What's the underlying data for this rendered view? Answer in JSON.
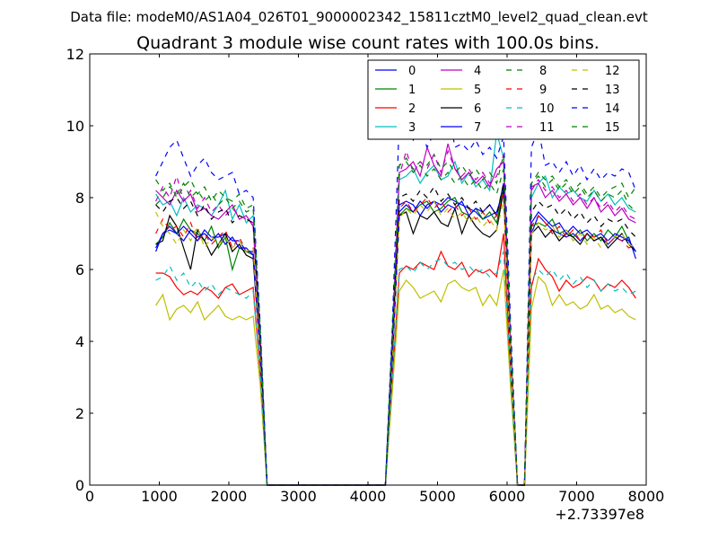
{
  "chart_data": {
    "type": "line",
    "suptitle": "Data file: modeM0/AS1A04_026T01_9000002342_15811cztM0_level2_quad_clean.evt",
    "title": "Quadrant 3 module wise count rates with 100.0s bins.",
    "xlabel": "",
    "ylabel": "",
    "x_offset_label": "+2.73397e8",
    "xlim": [
      0,
      8000
    ],
    "ylim": [
      0,
      12
    ],
    "xticks": [
      0,
      1000,
      2000,
      3000,
      4000,
      5000,
      6000,
      7000,
      8000
    ],
    "xtick_labels": [
      "0",
      "1000",
      "2000",
      "3000",
      "4000",
      "5000",
      "6000",
      "7000",
      "8000"
    ],
    "yticks": [
      0,
      2,
      4,
      6,
      8,
      10,
      12
    ],
    "ytick_labels": [
      "0",
      "2",
      "4",
      "6",
      "8",
      "10",
      "12"
    ],
    "legend_position": "top-right",
    "x": [
      950,
      1050,
      1150,
      1250,
      1350,
      1450,
      1550,
      1650,
      1750,
      1850,
      1950,
      2050,
      2150,
      2250,
      2350,
      2450,
      2550,
      2650,
      2750,
      2850,
      2950,
      3050,
      3150,
      3250,
      3350,
      3450,
      3550,
      3650,
      3750,
      3850,
      3950,
      4050,
      4150,
      4250,
      4350,
      4450,
      4550,
      4650,
      4750,
      4850,
      4950,
      5050,
      5150,
      5250,
      5350,
      5450,
      5550,
      5650,
      5750,
      5850,
      5950,
      6050,
      6150,
      6250,
      6350,
      6450,
      6550,
      6650,
      6750,
      6850,
      6950,
      7050,
      7150,
      7250,
      7350,
      7450,
      7550,
      7650,
      7750,
      7850
    ],
    "series": [
      {
        "name": "0",
        "color": "#0000ff",
        "dash": false,
        "values": [
          6.6,
          7.0,
          7.1,
          7.0,
          7.2,
          7.0,
          6.8,
          7.1,
          6.9,
          6.9,
          7.0,
          6.8,
          6.8,
          6.5,
          6.5,
          3.8,
          0,
          0,
          0,
          0,
          0,
          0,
          0,
          0,
          0,
          0,
          0,
          0,
          0,
          0,
          0,
          0,
          0,
          0,
          3.5,
          7.8,
          7.9,
          7.8,
          7.5,
          7.8,
          7.9,
          7.8,
          8.0,
          7.9,
          7.8,
          7.7,
          7.6,
          7.4,
          7.5,
          7.6,
          8.2,
          3.5,
          0,
          0,
          7.0,
          7.5,
          7.3,
          7.1,
          7.0,
          6.9,
          7.0,
          6.8,
          7.0,
          6.8,
          6.9,
          6.7,
          6.9,
          6.8,
          6.9,
          6.3
        ]
      },
      {
        "name": "1",
        "color": "#008000",
        "dash": false,
        "values": [
          6.7,
          6.9,
          7.3,
          7.0,
          7.4,
          7.1,
          7.0,
          6.8,
          7.2,
          6.6,
          6.9,
          6.0,
          6.6,
          6.5,
          6.4,
          3.7,
          0,
          0,
          0,
          0,
          0,
          0,
          0,
          0,
          0,
          0,
          0,
          0,
          0,
          0,
          0,
          0,
          0,
          0,
          3.6,
          7.5,
          7.7,
          7.6,
          7.8,
          7.9,
          7.6,
          7.7,
          7.9,
          8.0,
          7.6,
          7.5,
          7.7,
          7.4,
          7.6,
          7.3,
          8.3,
          3.6,
          0,
          0,
          7.2,
          7.3,
          7.2,
          7.4,
          7.0,
          7.1,
          6.9,
          7.1,
          6.8,
          7.0,
          6.8,
          7.1,
          6.9,
          7.2,
          6.8,
          6.5
        ]
      },
      {
        "name": "2",
        "color": "#ff0000",
        "dash": false,
        "values": [
          5.9,
          5.9,
          5.8,
          5.5,
          5.3,
          5.4,
          5.3,
          5.5,
          5.4,
          5.2,
          5.5,
          5.6,
          5.3,
          5.4,
          5.5,
          3.1,
          0,
          0,
          0,
          0,
          0,
          0,
          0,
          0,
          0,
          0,
          0,
          0,
          0,
          0,
          0,
          0,
          0,
          0,
          2.9,
          5.9,
          6.1,
          6.0,
          6.2,
          6.1,
          6.0,
          6.5,
          6.1,
          6.0,
          6.2,
          5.8,
          6.0,
          5.9,
          6.0,
          5.8,
          7.0,
          3.0,
          0,
          0,
          5.5,
          6.3,
          6.0,
          5.8,
          5.4,
          5.7,
          5.5,
          5.6,
          5.8,
          5.7,
          5.4,
          5.6,
          5.5,
          5.7,
          5.5,
          5.2
        ]
      },
      {
        "name": "3",
        "color": "#00bfbf",
        "dash": false,
        "values": [
          8.1,
          7.8,
          7.9,
          7.5,
          8.0,
          7.6,
          7.8,
          7.7,
          7.5,
          7.8,
          8.2,
          7.4,
          7.8,
          7.3,
          7.5,
          4.3,
          0,
          0,
          0,
          0,
          0,
          0,
          0,
          0,
          0,
          0,
          0,
          0,
          0,
          0,
          0,
          0,
          0,
          0,
          4.2,
          8.5,
          8.6,
          8.8,
          8.4,
          8.7,
          8.9,
          8.5,
          8.6,
          9.0,
          8.4,
          8.7,
          8.3,
          8.5,
          8.2,
          9.8,
          9.1,
          4.0,
          0,
          0,
          8.0,
          8.4,
          8.6,
          8.0,
          8.3,
          8.1,
          8.2,
          8.0,
          7.9,
          8.2,
          7.9,
          8.1,
          7.8,
          8.0,
          7.7,
          7.6
        ]
      },
      {
        "name": "4",
        "color": "#bf00bf",
        "dash": false,
        "values": [
          8.2,
          8.0,
          7.8,
          8.2,
          7.9,
          8.1,
          7.6,
          7.7,
          7.5,
          7.4,
          7.6,
          7.8,
          7.4,
          7.5,
          7.2,
          4.1,
          0,
          0,
          0,
          0,
          0,
          0,
          0,
          0,
          0,
          0,
          0,
          0,
          0,
          0,
          0,
          0,
          0,
          0,
          4.0,
          8.7,
          8.8,
          9.0,
          8.6,
          9.4,
          8.9,
          8.6,
          9.5,
          8.8,
          8.5,
          8.7,
          8.4,
          8.6,
          8.3,
          8.8,
          9.0,
          3.9,
          0,
          0,
          8.3,
          8.4,
          8.0,
          8.2,
          7.9,
          8.1,
          7.8,
          8.0,
          7.7,
          8.0,
          7.6,
          7.8,
          7.5,
          7.7,
          7.4,
          7.3
        ]
      },
      {
        "name": "5",
        "color": "#bfbf00",
        "dash": false,
        "values": [
          5.0,
          5.3,
          4.6,
          4.9,
          5.0,
          4.8,
          5.1,
          4.6,
          4.8,
          5.0,
          4.7,
          4.6,
          4.7,
          4.6,
          4.7,
          2.8,
          0,
          0,
          0,
          0,
          0,
          0,
          0,
          0,
          0,
          0,
          0,
          0,
          0,
          0,
          0,
          0,
          0,
          0,
          2.6,
          5.4,
          5.7,
          5.5,
          5.2,
          5.3,
          5.4,
          5.1,
          5.6,
          5.7,
          5.5,
          5.4,
          5.5,
          5.0,
          5.3,
          5.0,
          6.0,
          2.7,
          0,
          0,
          4.9,
          5.8,
          5.6,
          5.0,
          5.3,
          5.0,
          5.1,
          4.9,
          5.0,
          5.3,
          4.9,
          5.0,
          4.8,
          4.9,
          4.7,
          4.6
        ]
      },
      {
        "name": "6",
        "color": "#000000",
        "dash": false,
        "values": [
          6.7,
          6.8,
          7.5,
          7.2,
          6.6,
          6.0,
          7.1,
          6.8,
          6.4,
          6.7,
          7.0,
          6.5,
          6.7,
          6.4,
          6.3,
          3.6,
          0,
          0,
          0,
          0,
          0,
          0,
          0,
          0,
          0,
          0,
          0,
          0,
          0,
          0,
          0,
          0,
          0,
          0,
          3.4,
          7.5,
          7.6,
          7.0,
          7.5,
          7.4,
          7.6,
          7.3,
          7.2,
          7.7,
          7.0,
          7.5,
          7.2,
          7.0,
          6.9,
          7.1,
          8.2,
          3.4,
          0,
          0,
          7.0,
          7.2,
          6.9,
          7.1,
          6.8,
          7.0,
          6.9,
          6.7,
          7.0,
          6.8,
          6.9,
          6.6,
          6.8,
          7.0,
          6.7,
          6.5
        ]
      },
      {
        "name": "7",
        "color": "#0000ff",
        "dash": false,
        "values": [
          6.5,
          7.0,
          7.2,
          7.0,
          6.8,
          7.1,
          6.9,
          7.0,
          6.8,
          7.0,
          6.7,
          6.9,
          6.6,
          6.6,
          6.4,
          3.7,
          0,
          0,
          0,
          0,
          0,
          0,
          0,
          0,
          0,
          0,
          0,
          0,
          0,
          0,
          0,
          0,
          0,
          0,
          3.5,
          7.6,
          7.8,
          7.6,
          7.9,
          7.7,
          7.9,
          7.6,
          7.8,
          7.7,
          7.9,
          7.5,
          7.7,
          7.6,
          7.8,
          7.5,
          8.4,
          3.5,
          0,
          0,
          7.3,
          7.6,
          7.4,
          7.2,
          7.3,
          7.0,
          7.2,
          7.0,
          7.1,
          6.9,
          7.0,
          6.8,
          7.0,
          6.9,
          6.8,
          6.5
        ]
      },
      {
        "name": "8",
        "color": "#008000",
        "dash": true,
        "values": [
          7.8,
          8.0,
          8.3,
          8.1,
          8.4,
          8.0,
          8.2,
          7.9,
          8.1,
          7.8,
          8.0,
          7.7,
          7.9,
          7.6,
          7.7,
          4.4,
          0,
          0,
          0,
          0,
          0,
          0,
          0,
          0,
          0,
          0,
          0,
          0,
          0,
          0,
          0,
          0,
          0,
          0,
          4.2,
          8.9,
          9.1,
          8.8,
          9.0,
          8.9,
          9.2,
          8.8,
          9.0,
          8.7,
          8.9,
          8.6,
          8.8,
          8.5,
          8.7,
          8.4,
          9.2,
          4.1,
          0,
          0,
          8.4,
          8.7,
          8.5,
          8.6,
          8.3,
          8.5,
          8.2,
          8.4,
          8.1,
          8.3,
          8.0,
          8.2,
          8.3,
          8.4,
          8.0,
          8.3
        ]
      },
      {
        "name": "9",
        "color": "#ff0000",
        "dash": true,
        "values": [
          7.0,
          7.4,
          7.1,
          7.2,
          6.9,
          7.3,
          6.8,
          7.0,
          6.7,
          6.9,
          7.1,
          6.6,
          6.9,
          6.5,
          6.6,
          3.8,
          0,
          0,
          0,
          0,
          0,
          0,
          0,
          0,
          0,
          0,
          0,
          0,
          0,
          0,
          0,
          0,
          0,
          0,
          3.6,
          7.7,
          7.9,
          7.6,
          7.8,
          8.0,
          7.7,
          7.9,
          7.6,
          7.8,
          7.5,
          7.7,
          7.4,
          7.6,
          7.3,
          7.5,
          8.1,
          3.6,
          0,
          0,
          7.2,
          7.5,
          7.3,
          7.0,
          7.2,
          6.9,
          7.1,
          6.8,
          7.0,
          6.9,
          7.1,
          6.7,
          6.9,
          6.8,
          6.6,
          6.7
        ]
      },
      {
        "name": "10",
        "color": "#00bfbf",
        "dash": true,
        "values": [
          5.7,
          5.8,
          6.1,
          5.7,
          5.9,
          5.5,
          5.7,
          5.4,
          5.6,
          5.3,
          5.5,
          5.4,
          5.3,
          5.2,
          5.4,
          3.1,
          0,
          0,
          0,
          0,
          0,
          0,
          0,
          0,
          0,
          0,
          0,
          0,
          0,
          0,
          0,
          0,
          0,
          0,
          3.0,
          6.0,
          6.1,
          5.9,
          6.2,
          6.0,
          6.2,
          6.3,
          6.1,
          6.2,
          6.0,
          6.1,
          5.9,
          6.0,
          5.8,
          5.9,
          6.5,
          3.0,
          0,
          0,
          5.7,
          6.0,
          5.8,
          6.0,
          5.7,
          5.9,
          5.6,
          5.8,
          5.5,
          5.7,
          5.4,
          5.6,
          5.4,
          5.5,
          5.3,
          5.4
        ]
      },
      {
        "name": "11",
        "color": "#bf00bf",
        "dash": true,
        "values": [
          7.9,
          8.3,
          8.0,
          8.6,
          7.9,
          8.2,
          7.7,
          8.0,
          7.6,
          7.8,
          7.5,
          7.7,
          7.5,
          7.4,
          7.3,
          4.2,
          0,
          0,
          0,
          0,
          0,
          0,
          0,
          0,
          0,
          0,
          0,
          0,
          0,
          0,
          0,
          0,
          0,
          0,
          4.1,
          8.6,
          9.3,
          8.7,
          9.0,
          8.8,
          9.2,
          8.7,
          9.3,
          8.8,
          8.6,
          8.8,
          8.5,
          8.7,
          8.4,
          8.6,
          9.2,
          4.0,
          0,
          0,
          8.2,
          8.5,
          8.2,
          8.3,
          8.0,
          8.2,
          7.9,
          8.1,
          7.8,
          8.0,
          7.7,
          7.9,
          7.6,
          7.8,
          7.5,
          7.4
        ]
      },
      {
        "name": "12",
        "color": "#bfbf00",
        "dash": true,
        "values": [
          7.6,
          7.2,
          7.0,
          6.7,
          7.1,
          6.8,
          7.2,
          6.6,
          6.9,
          6.7,
          6.9,
          6.6,
          6.8,
          6.5,
          6.6,
          3.7,
          0,
          0,
          0,
          0,
          0,
          0,
          0,
          0,
          0,
          0,
          0,
          0,
          0,
          0,
          0,
          0,
          0,
          0,
          3.6,
          7.4,
          7.7,
          7.5,
          7.8,
          7.6,
          7.9,
          7.5,
          7.7,
          7.4,
          7.6,
          7.3,
          7.5,
          7.2,
          7.4,
          7.1,
          7.9,
          3.5,
          0,
          0,
          7.0,
          7.3,
          7.1,
          7.2,
          6.9,
          7.1,
          6.8,
          7.0,
          6.7,
          6.9,
          6.6,
          6.8,
          6.9,
          7.0,
          6.7,
          6.6
        ]
      },
      {
        "name": "13",
        "color": "#000000",
        "dash": true,
        "values": [
          7.8,
          7.6,
          7.9,
          8.0,
          7.7,
          7.9,
          7.5,
          7.8,
          7.4,
          7.6,
          7.7,
          7.3,
          7.5,
          7.4,
          7.3,
          4.1,
          0,
          0,
          0,
          0,
          0,
          0,
          0,
          0,
          0,
          0,
          0,
          0,
          0,
          0,
          0,
          0,
          0,
          0,
          4.0,
          8.0,
          8.1,
          7.9,
          8.2,
          8.0,
          8.3,
          7.9,
          8.1,
          7.8,
          8.0,
          7.7,
          7.9,
          7.6,
          7.8,
          7.5,
          8.4,
          3.9,
          0,
          0,
          7.6,
          7.9,
          7.7,
          7.8,
          7.5,
          7.7,
          7.4,
          7.6,
          7.3,
          7.5,
          7.2,
          7.4,
          7.3,
          7.4,
          7.1,
          6.9
        ]
      },
      {
        "name": "14",
        "color": "#0000ff",
        "dash": true,
        "values": [
          8.6,
          9.0,
          9.4,
          9.6,
          9.1,
          8.6,
          8.9,
          9.1,
          8.7,
          8.5,
          8.6,
          8.7,
          8.1,
          8.2,
          8.0,
          4.5,
          0,
          0,
          0,
          0,
          0,
          0,
          0,
          0,
          0,
          0,
          0,
          0,
          0,
          0,
          0,
          0,
          0,
          0,
          4.4,
          10.2,
          10.0,
          9.6,
          9.9,
          9.4,
          9.8,
          9.7,
          10.5,
          9.4,
          9.5,
          9.3,
          9.6,
          9.2,
          9.4,
          9.1,
          9.7,
          4.5,
          0,
          0,
          9.4,
          9.9,
          8.9,
          9.0,
          8.7,
          9.0,
          8.6,
          8.9,
          8.5,
          8.8,
          8.5,
          8.7,
          8.6,
          8.8,
          8.7,
          8.2
        ]
      },
      {
        "name": "15",
        "color": "#008000",
        "dash": true,
        "values": [
          8.5,
          8.2,
          8.4,
          8.0,
          8.3,
          8.5,
          8.1,
          8.3,
          7.9,
          8.2,
          8.0,
          7.9,
          8.1,
          7.7,
          7.8,
          4.3,
          0,
          0,
          0,
          0,
          0,
          0,
          0,
          0,
          0,
          0,
          0,
          0,
          0,
          0,
          0,
          0,
          0,
          0,
          4.2,
          8.9,
          9.0,
          8.7,
          8.9,
          8.6,
          8.8,
          8.5,
          8.7,
          8.4,
          8.6,
          8.3,
          8.5,
          8.2,
          8.4,
          8.1,
          8.8,
          4.1,
          0,
          0,
          8.4,
          8.6,
          8.3,
          8.5,
          8.2,
          8.4,
          8.1,
          8.3,
          8.0,
          8.2,
          7.9,
          8.1,
          8.0,
          8.2,
          7.8,
          7.6
        ]
      }
    ]
  }
}
